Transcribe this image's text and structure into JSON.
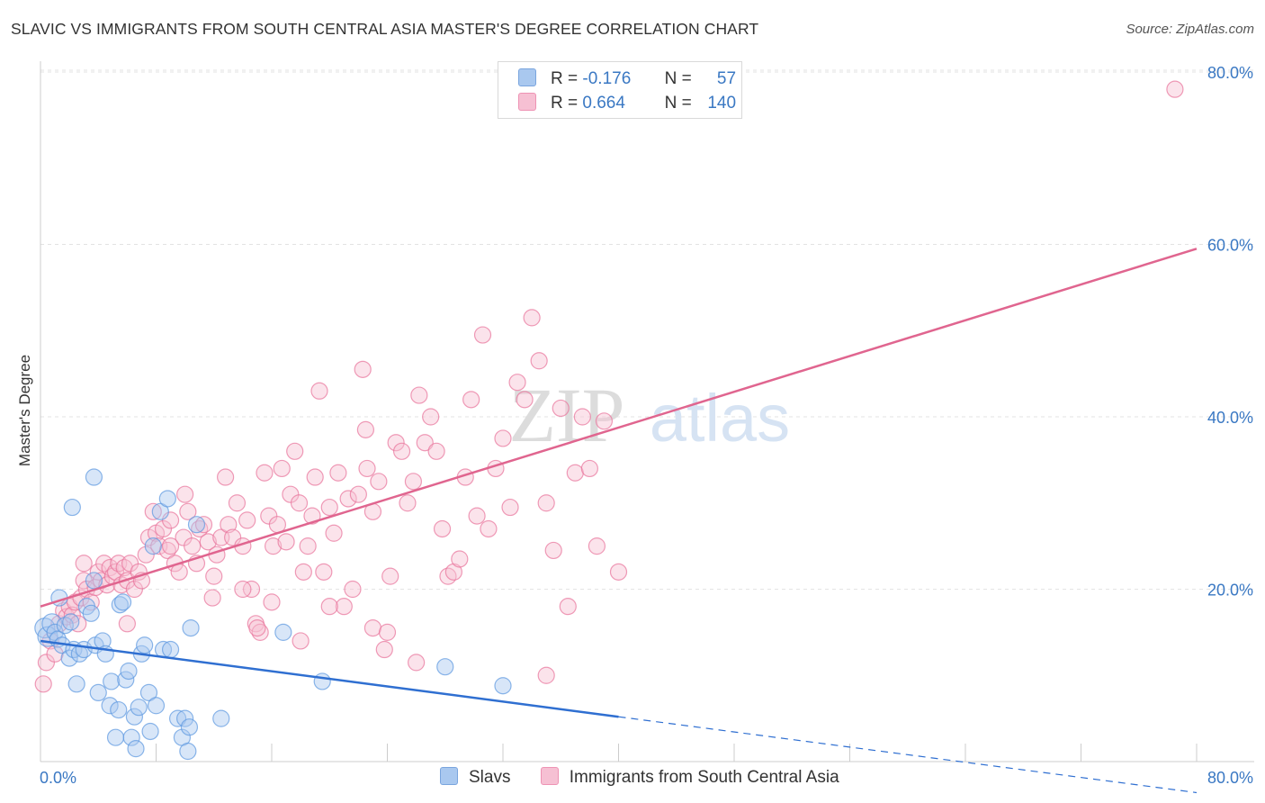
{
  "title": "SLAVIC VS IMMIGRANTS FROM SOUTH CENTRAL ASIA MASTER'S DEGREE CORRELATION CHART",
  "source": "Source: ZipAtlas.com",
  "watermark": {
    "zip": "ZIP",
    "atlas": "atlas"
  },
  "legend": {
    "rows": [
      {
        "r_label": "R =",
        "r_value": "-0.176",
        "n_label": "N =",
        "n_value": "57",
        "color": "#a9c8ef"
      },
      {
        "r_label": "R =",
        "r_value": "0.664",
        "n_label": "N =",
        "n_value": "140",
        "color": "#f6c0d3"
      }
    ]
  },
  "bottom_legend": [
    {
      "label": "Slavs",
      "color": "#a9c8ef"
    },
    {
      "label": "Immigrants from South Central Asia",
      "color": "#f6c0d3"
    }
  ],
  "chart_data": {
    "type": "scatter",
    "title": "SLAVIC VS IMMIGRANTS FROM SOUTH CENTRAL ASIA MASTER'S DEGREE CORRELATION CHART",
    "xlabel": "",
    "ylabel": "Master's Degree",
    "xlim": [
      0,
      80
    ],
    "ylim": [
      0,
      80
    ],
    "x_tick_labels": [
      "0.0%",
      "80.0%"
    ],
    "y_tick_labels": [
      "20.0%",
      "40.0%",
      "60.0%",
      "80.0%"
    ],
    "y_ticks": [
      20,
      40,
      60,
      80
    ],
    "grid": true,
    "series": [
      {
        "name": "Slavs",
        "color": "#5b97e0",
        "fill": "#a9c8ef",
        "trend": {
          "x0": 0,
          "y0": 14.0,
          "x1": 40,
          "y1": 5.2,
          "dash_to_x": 80,
          "dash_to_y": -3.6
        },
        "points": [
          [
            0.3,
            15.5
          ],
          [
            0.5,
            14.5
          ],
          [
            0.8,
            16
          ],
          [
            1,
            15
          ],
          [
            1.2,
            14.2
          ],
          [
            1.5,
            13.5
          ],
          [
            1.7,
            15.8
          ],
          [
            2,
            12
          ],
          [
            2.1,
            16.2
          ],
          [
            2.3,
            13
          ],
          [
            2.5,
            9
          ],
          [
            2.7,
            12.5
          ],
          [
            3,
            13
          ],
          [
            3.2,
            18
          ],
          [
            3.5,
            17.2
          ],
          [
            3.7,
            21
          ],
          [
            3.8,
            13.5
          ],
          [
            4,
            8
          ],
          [
            4.3,
            14
          ],
          [
            4.5,
            12.5
          ],
          [
            4.8,
            6.5
          ],
          [
            4.9,
            9.3
          ],
          [
            5.2,
            2.8
          ],
          [
            5.4,
            6
          ],
          [
            5.5,
            18.2
          ],
          [
            5.7,
            18.5
          ],
          [
            5.9,
            9.5
          ],
          [
            6.1,
            10.5
          ],
          [
            6.3,
            2.8
          ],
          [
            6.5,
            5.2
          ],
          [
            6.6,
            1.5
          ],
          [
            6.8,
            6.3
          ],
          [
            7,
            12.5
          ],
          [
            7.2,
            13.5
          ],
          [
            7.5,
            8
          ],
          [
            7.6,
            3.5
          ],
          [
            7.8,
            25
          ],
          [
            8,
            6.5
          ],
          [
            8.3,
            29
          ],
          [
            8.5,
            13
          ],
          [
            8.8,
            30.5
          ],
          [
            9,
            13
          ],
          [
            9.5,
            5
          ],
          [
            9.8,
            2.8
          ],
          [
            10,
            5
          ],
          [
            10.2,
            1.2
          ],
          [
            10.3,
            4
          ],
          [
            10.4,
            15.5
          ],
          [
            10.8,
            27.5
          ],
          [
            12.5,
            5
          ],
          [
            2.2,
            29.5
          ],
          [
            3.7,
            33
          ],
          [
            16.8,
            15
          ],
          [
            19.5,
            9.3
          ],
          [
            28,
            11
          ],
          [
            32,
            8.8
          ],
          [
            1.3,
            19
          ]
        ]
      },
      {
        "name": "Immigrants from South Central Asia",
        "color": "#e8729a",
        "fill": "#f6c0d3",
        "trend": {
          "x0": 0,
          "y0": 18.0,
          "x1": 80,
          "y1": 59.5
        },
        "points": [
          [
            0.2,
            9
          ],
          [
            0.4,
            11.5
          ],
          [
            0.7,
            14
          ],
          [
            1,
            12.5
          ],
          [
            1.3,
            16
          ],
          [
            1.6,
            17.5
          ],
          [
            1.8,
            16.8
          ],
          [
            2,
            18
          ],
          [
            2.2,
            17
          ],
          [
            2.4,
            18.5
          ],
          [
            2.6,
            16
          ],
          [
            2.8,
            19
          ],
          [
            3,
            21
          ],
          [
            3.2,
            20
          ],
          [
            3.5,
            18.5
          ],
          [
            3.8,
            20.2
          ],
          [
            4,
            22
          ],
          [
            4.2,
            21
          ],
          [
            4.4,
            23
          ],
          [
            4.6,
            20.5
          ],
          [
            4.8,
            22.5
          ],
          [
            5,
            21.5
          ],
          [
            5.2,
            22
          ],
          [
            5.4,
            23
          ],
          [
            5.6,
            20.5
          ],
          [
            5.8,
            22.5
          ],
          [
            6,
            21
          ],
          [
            6.2,
            23
          ],
          [
            6.5,
            20
          ],
          [
            6.8,
            22
          ],
          [
            7,
            21
          ],
          [
            7.3,
            24
          ],
          [
            7.5,
            26
          ],
          [
            7.8,
            29
          ],
          [
            8,
            26.5
          ],
          [
            8.2,
            25
          ],
          [
            8.5,
            27
          ],
          [
            8.8,
            24.5
          ],
          [
            9,
            28
          ],
          [
            9.3,
            23
          ],
          [
            9.6,
            22
          ],
          [
            9.9,
            26
          ],
          [
            10.2,
            29
          ],
          [
            10.5,
            25
          ],
          [
            10.8,
            23
          ],
          [
            11,
            27
          ],
          [
            11.3,
            27.5
          ],
          [
            11.6,
            25.5
          ],
          [
            11.9,
            19
          ],
          [
            12.2,
            24
          ],
          [
            12.5,
            26
          ],
          [
            12.8,
            33
          ],
          [
            13,
            27.5
          ],
          [
            13.3,
            26
          ],
          [
            13.6,
            30
          ],
          [
            14,
            25
          ],
          [
            14.3,
            28
          ],
          [
            14.6,
            20
          ],
          [
            14.9,
            16
          ],
          [
            15.2,
            15
          ],
          [
            15.5,
            33.5
          ],
          [
            15.8,
            28.5
          ],
          [
            16.1,
            25
          ],
          [
            16.4,
            27.5
          ],
          [
            16.7,
            34
          ],
          [
            17,
            25.5
          ],
          [
            17.3,
            31
          ],
          [
            17.6,
            36
          ],
          [
            17.9,
            30
          ],
          [
            18.2,
            22
          ],
          [
            18.5,
            25
          ],
          [
            18.8,
            28.5
          ],
          [
            19,
            33
          ],
          [
            19.3,
            43
          ],
          [
            19.6,
            22
          ],
          [
            20,
            29.5
          ],
          [
            20.3,
            26.5
          ],
          [
            20.6,
            33.5
          ],
          [
            21,
            18
          ],
          [
            21.3,
            30.5
          ],
          [
            21.6,
            20
          ],
          [
            22,
            31
          ],
          [
            22.3,
            45.5
          ],
          [
            22.6,
            34
          ],
          [
            23,
            29
          ],
          [
            23.4,
            32.5
          ],
          [
            23.8,
            13
          ],
          [
            24.2,
            21.5
          ],
          [
            24.6,
            37
          ],
          [
            25,
            36
          ],
          [
            25.4,
            30
          ],
          [
            25.8,
            32.5
          ],
          [
            26.2,
            42.5
          ],
          [
            26.6,
            37
          ],
          [
            27,
            40
          ],
          [
            27.4,
            36
          ],
          [
            27.8,
            27
          ],
          [
            28.2,
            21.5
          ],
          [
            28.6,
            22
          ],
          [
            29,
            23.5
          ],
          [
            29.4,
            33
          ],
          [
            29.8,
            42
          ],
          [
            30.2,
            28.5
          ],
          [
            30.6,
            49.5
          ],
          [
            31,
            27
          ],
          [
            31.5,
            34
          ],
          [
            32,
            37.5
          ],
          [
            32.5,
            29.5
          ],
          [
            33,
            44
          ],
          [
            33.5,
            42
          ],
          [
            34,
            51.5
          ],
          [
            34.5,
            46.5
          ],
          [
            35,
            30
          ],
          [
            35.5,
            24.5
          ],
          [
            36,
            41
          ],
          [
            36.5,
            18
          ],
          [
            37,
            33.5
          ],
          [
            37.5,
            40
          ],
          [
            38,
            34
          ],
          [
            38.5,
            25
          ],
          [
            39,
            39.5
          ],
          [
            40,
            22
          ],
          [
            3,
            23
          ],
          [
            15,
            15.5
          ],
          [
            18,
            14
          ],
          [
            20,
            18
          ],
          [
            23,
            15.5
          ],
          [
            26,
            11.5
          ],
          [
            35,
            10
          ],
          [
            78.5,
            78
          ],
          [
            22.5,
            38.5
          ],
          [
            14,
            20
          ],
          [
            6,
            16
          ],
          [
            9,
            25
          ],
          [
            12,
            21.5
          ],
          [
            16,
            18.5
          ],
          [
            10,
            31
          ],
          [
            24,
            15
          ]
        ]
      }
    ]
  }
}
